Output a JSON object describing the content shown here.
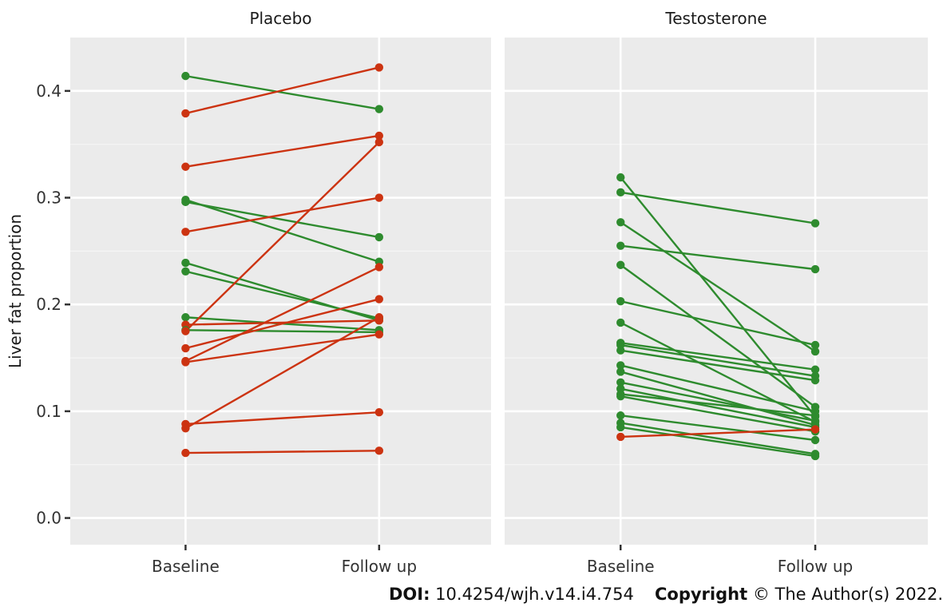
{
  "chart_data": {
    "type": "line",
    "ylabel": "Liver fat proportion",
    "xlabel": "",
    "categories": [
      "Baseline",
      "Follow up"
    ],
    "ylim": [
      -0.025,
      0.45
    ],
    "yticks": [
      0.0,
      0.1,
      0.2,
      0.3,
      0.4
    ],
    "ytick_labels": [
      "0.0",
      "0.1",
      "0.2",
      "0.3",
      "0.4"
    ],
    "grid": true,
    "colors": {
      "increase": "#cc3311",
      "decrease": "#2e8b2e",
      "panel_bg": "#ebebeb",
      "grid": "#ffffff"
    },
    "panels": [
      {
        "title": "Placebo",
        "pairs": [
          [
            0.414,
            0.383
          ],
          [
            0.379,
            0.422
          ],
          [
            0.329,
            0.358
          ],
          [
            0.298,
            0.24
          ],
          [
            0.296,
            0.263
          ],
          [
            0.268,
            0.3
          ],
          [
            0.239,
            0.185
          ],
          [
            0.231,
            0.187
          ],
          [
            0.188,
            0.176
          ],
          [
            0.181,
            0.185
          ],
          [
            0.176,
            0.174
          ],
          [
            0.175,
            0.352
          ],
          [
            0.159,
            0.205
          ],
          [
            0.147,
            0.235
          ],
          [
            0.146,
            0.172
          ],
          [
            0.088,
            0.099
          ],
          [
            0.084,
            0.188
          ],
          [
            0.061,
            0.063
          ]
        ]
      },
      {
        "title": "Testosterone",
        "pairs": [
          [
            0.319,
            0.095
          ],
          [
            0.305,
            0.276
          ],
          [
            0.277,
            0.156
          ],
          [
            0.255,
            0.233
          ],
          [
            0.237,
            0.104
          ],
          [
            0.203,
            0.162
          ],
          [
            0.183,
            0.09
          ],
          [
            0.164,
            0.139
          ],
          [
            0.162,
            0.133
          ],
          [
            0.157,
            0.129
          ],
          [
            0.143,
            0.1
          ],
          [
            0.137,
            0.087
          ],
          [
            0.127,
            0.091
          ],
          [
            0.121,
            0.085
          ],
          [
            0.116,
            0.096
          ],
          [
            0.114,
            0.081
          ],
          [
            0.096,
            0.073
          ],
          [
            0.089,
            0.06
          ],
          [
            0.085,
            0.058
          ],
          [
            0.076,
            0.083
          ]
        ]
      }
    ]
  },
  "footer": {
    "doi_label": "DOI:",
    "doi_value": " 10.4254/wjh.v14.i4.754",
    "copyright_label": "Copyright",
    "copyright_value": " © The Author(s) 2022."
  }
}
